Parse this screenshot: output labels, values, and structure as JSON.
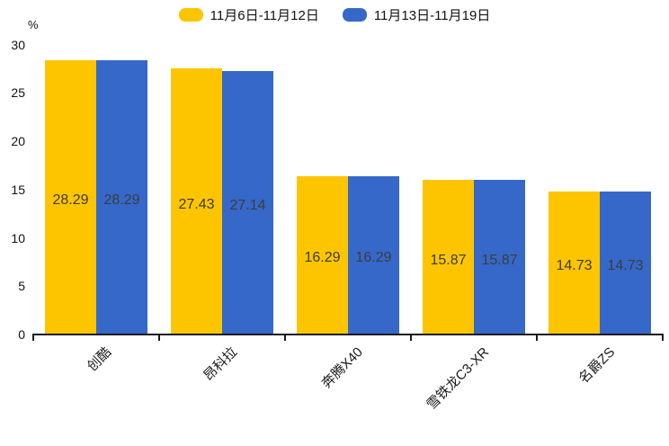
{
  "chart_data": {
    "type": "bar",
    "title": "",
    "categories": [
      "创酷",
      "昂科拉",
      "奔腾X40",
      "雪铁龙C3-XR",
      "名爵ZS"
    ],
    "series": [
      {
        "name": "11月6日-11月12日",
        "color": "#FDC500",
        "values": [
          28.29,
          27.43,
          16.29,
          15.87,
          14.73
        ]
      },
      {
        "name": "11月13日-11月19日",
        "color": "#3668C9",
        "values": [
          28.29,
          27.14,
          16.29,
          15.87,
          14.73
        ]
      }
    ],
    "xlabel": "",
    "ylabel": "%",
    "yticks": [
      0,
      5,
      10,
      15,
      20,
      25,
      30
    ],
    "ylim": [
      0,
      30
    ],
    "grid": false,
    "legend_position": "top",
    "value_labels": "inside-center",
    "value_label_color": "#3c3c3c",
    "axis_color": "#1a1a1a",
    "category_label_rotation_deg": 45
  }
}
